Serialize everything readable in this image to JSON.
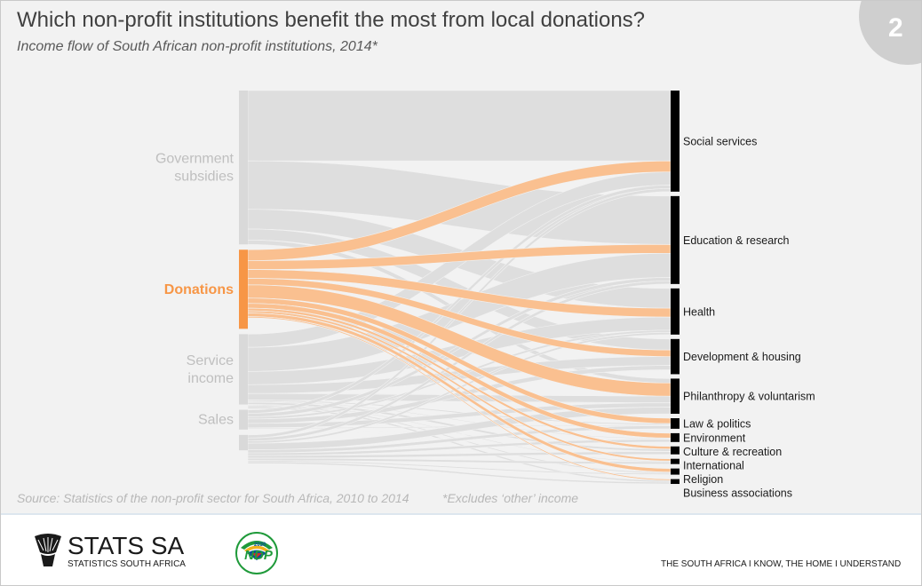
{
  "header": {
    "title": "Which non-profit institutions benefit the most from local donations?",
    "subtitle": "Income flow of South African non-profit institutions, 2014*",
    "page_number": "2"
  },
  "chart_data": {
    "type": "sankey",
    "highlight_source": "Donations",
    "colors": {
      "highlight": "#f79646",
      "highlight_flow": "#fac090",
      "muted_node": "#d9d9d9",
      "muted_flow": "#dedede",
      "target_node": "#000000"
    },
    "sources": [
      {
        "id": "gov",
        "label_lines": [
          "Government",
          "subsidies"
        ],
        "share": 0.35
      },
      {
        "id": "don",
        "label_lines": [
          "Donations"
        ],
        "share": 0.18
      },
      {
        "id": "svc",
        "label_lines": [
          "Service",
          "income"
        ],
        "share": 0.16
      },
      {
        "id": "sal",
        "label_lines": [
          "Sales"
        ],
        "share": 0.045
      },
      {
        "id": "oth",
        "label_lines": [],
        "share": 0.035
      }
    ],
    "targets": [
      {
        "id": "soc",
        "label": "Social services",
        "share": 0.23
      },
      {
        "id": "edu",
        "label": "Education & research",
        "share": 0.2
      },
      {
        "id": "hea",
        "label": "Health",
        "share": 0.105
      },
      {
        "id": "dev",
        "label": "Development & housing",
        "share": 0.08
      },
      {
        "id": "phi",
        "label": "Philanthropy & voluntarism",
        "share": 0.08
      },
      {
        "id": "law",
        "label": "Law & politics",
        "share": 0.024
      },
      {
        "id": "env",
        "label": "Environment",
        "share": 0.02
      },
      {
        "id": "cul",
        "label": "Culture & recreation",
        "share": 0.018
      },
      {
        "id": "int",
        "label": "International",
        "share": 0.012
      },
      {
        "id": "rel",
        "label": "Religion",
        "share": 0.014
      },
      {
        "id": "bus",
        "label": "Business associations",
        "share": 0.011
      }
    ],
    "flows": [
      {
        "source": "gov",
        "target": "soc",
        "value": 0.16
      },
      {
        "source": "gov",
        "target": "edu",
        "value": 0.11
      },
      {
        "source": "gov",
        "target": "hea",
        "value": 0.045
      },
      {
        "source": "gov",
        "target": "dev",
        "value": 0.025
      },
      {
        "source": "gov",
        "target": "phi",
        "value": 0.01
      },
      {
        "source": "don",
        "target": "soc",
        "value": 0.025
      },
      {
        "source": "don",
        "target": "edu",
        "value": 0.02
      },
      {
        "source": "don",
        "target": "hea",
        "value": 0.02
      },
      {
        "source": "don",
        "target": "dev",
        "value": 0.015
      },
      {
        "source": "don",
        "target": "phi",
        "value": 0.03
      },
      {
        "source": "don",
        "target": "law",
        "value": 0.012
      },
      {
        "source": "don",
        "target": "env",
        "value": 0.011
      },
      {
        "source": "don",
        "target": "cul",
        "value": 0.006
      },
      {
        "source": "don",
        "target": "int",
        "value": 0.005
      },
      {
        "source": "don",
        "target": "rel",
        "value": 0.008
      },
      {
        "source": "don",
        "target": "bus",
        "value": 0.003
      },
      {
        "source": "svc",
        "target": "soc",
        "value": 0.03
      },
      {
        "source": "svc",
        "target": "edu",
        "value": 0.055
      },
      {
        "source": "svc",
        "target": "hea",
        "value": 0.03
      },
      {
        "source": "svc",
        "target": "dev",
        "value": 0.02
      },
      {
        "source": "svc",
        "target": "phi",
        "value": 0.015
      },
      {
        "source": "svc",
        "target": "law",
        "value": 0.003
      },
      {
        "source": "svc",
        "target": "env",
        "value": 0.002
      },
      {
        "source": "svc",
        "target": "cul",
        "value": 0.005
      },
      {
        "source": "svc",
        "target": "int",
        "value": 0.002
      },
      {
        "source": "svc",
        "target": "rel",
        "value": 0.003
      },
      {
        "source": "svc",
        "target": "bus",
        "value": 0.004
      },
      {
        "source": "sal",
        "target": "soc",
        "value": 0.008
      },
      {
        "source": "sal",
        "target": "edu",
        "value": 0.008
      },
      {
        "source": "sal",
        "target": "hea",
        "value": 0.005
      },
      {
        "source": "sal",
        "target": "dev",
        "value": 0.01
      },
      {
        "source": "sal",
        "target": "phi",
        "value": 0.01
      },
      {
        "source": "sal",
        "target": "law",
        "value": 0.002
      },
      {
        "source": "sal",
        "target": "env",
        "value": 0.001
      },
      {
        "source": "sal",
        "target": "cul",
        "value": 0.001
      },
      {
        "source": "oth",
        "target": "soc",
        "value": 0.007
      },
      {
        "source": "oth",
        "target": "edu",
        "value": 0.007
      },
      {
        "source": "oth",
        "target": "hea",
        "value": 0.005
      },
      {
        "source": "oth",
        "target": "phi",
        "value": 0.015
      },
      {
        "source": "oth",
        "target": "law",
        "value": 0.007
      },
      {
        "source": "oth",
        "target": "env",
        "value": 0.006
      },
      {
        "source": "oth",
        "target": "cul",
        "value": 0.006
      },
      {
        "source": "oth",
        "target": "int",
        "value": 0.005
      },
      {
        "source": "oth",
        "target": "rel",
        "value": 0.003
      },
      {
        "source": "oth",
        "target": "bus",
        "value": 0.004
      }
    ]
  },
  "notes": {
    "source": "Source: Statistics of the non-profit sector for South Africa, 2010 to 2014",
    "footnote": "*Excludes ‘other’ income"
  },
  "footer": {
    "logo_name": "STATS SA",
    "logo_sub": "STATISTICS SOUTH AFRICA",
    "ndp_text": "NDP",
    "ndp_year": "2030",
    "tagline": "THE SOUTH AFRICA I KNOW, THE HOME I UNDERSTAND"
  }
}
